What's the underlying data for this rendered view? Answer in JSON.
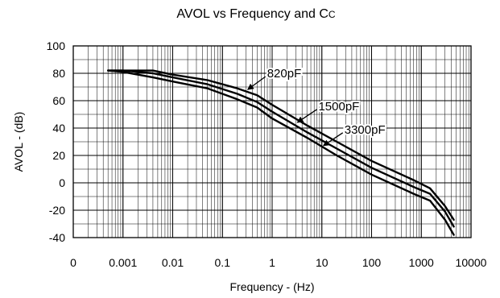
{
  "chart_data": {
    "type": "line",
    "title": "AVOL vs Frequency and Cc",
    "title_main": "AVOL vs Frequency and C",
    "title_sub": "C",
    "xlabel": "Frequency - (Hz)",
    "ylabel": "AVOL - (dB)",
    "x_scale": "log",
    "xlim": [
      0.0001,
      10000
    ],
    "ylim": [
      -40,
      100
    ],
    "grid": true,
    "x_ticks": [
      {
        "value": 0.0001,
        "label": "0"
      },
      {
        "value": 0.001,
        "label": "0.001"
      },
      {
        "value": 0.01,
        "label": "0.01"
      },
      {
        "value": 0.1,
        "label": "0.1"
      },
      {
        "value": 1,
        "label": "1"
      },
      {
        "value": 10,
        "label": "10"
      },
      {
        "value": 100,
        "label": "100"
      },
      {
        "value": 1000,
        "label": "1000"
      },
      {
        "value": 10000,
        "label": "10000"
      }
    ],
    "y_ticks": [
      {
        "value": 100,
        "label": "100"
      },
      {
        "value": 80,
        "label": "80"
      },
      {
        "value": 60,
        "label": "60"
      },
      {
        "value": 40,
        "label": "40"
      },
      {
        "value": 20,
        "label": "20"
      },
      {
        "value": 0,
        "label": "0"
      },
      {
        "value": -20,
        "label": "-20"
      },
      {
        "value": -40,
        "label": "-40"
      }
    ],
    "series": [
      {
        "name": "820pF",
        "x": [
          0.0005,
          0.001,
          0.004,
          0.01,
          0.05,
          0.2,
          0.5,
          1,
          5,
          20,
          100,
          700,
          1500,
          3000,
          4500
        ],
        "y": [
          82,
          82,
          82,
          79,
          75,
          69,
          64,
          57,
          42,
          30,
          16,
          2,
          -4,
          -17,
          -27
        ]
      },
      {
        "name": "1500pF",
        "x": [
          0.0005,
          0.001,
          0.004,
          0.01,
          0.05,
          0.2,
          0.5,
          1,
          5,
          20,
          100,
          700,
          1500,
          3000,
          4500
        ],
        "y": [
          82,
          82,
          80,
          77,
          72,
          65,
          59,
          52,
          37,
          25,
          11,
          -3,
          -8,
          -21,
          -32
        ]
      },
      {
        "name": "3300pF",
        "x": [
          0.0005,
          0.001,
          0.004,
          0.01,
          0.05,
          0.2,
          0.5,
          1,
          5,
          20,
          100,
          700,
          1500,
          3000,
          4500
        ],
        "y": [
          82,
          81,
          77,
          74,
          69,
          61,
          55,
          47,
          33,
          20,
          6,
          -8,
          -13,
          -27,
          -38
        ]
      }
    ],
    "annotations": [
      {
        "text": "820pF",
        "series": "820pF",
        "point_x": 0.3,
        "point_y": 67
      },
      {
        "text": "1500pF",
        "series": "1500pF",
        "point_x": 3,
        "point_y": 43
      },
      {
        "text": "3300pF",
        "series": "3300pF",
        "point_x": 10,
        "point_y": 26
      }
    ]
  }
}
